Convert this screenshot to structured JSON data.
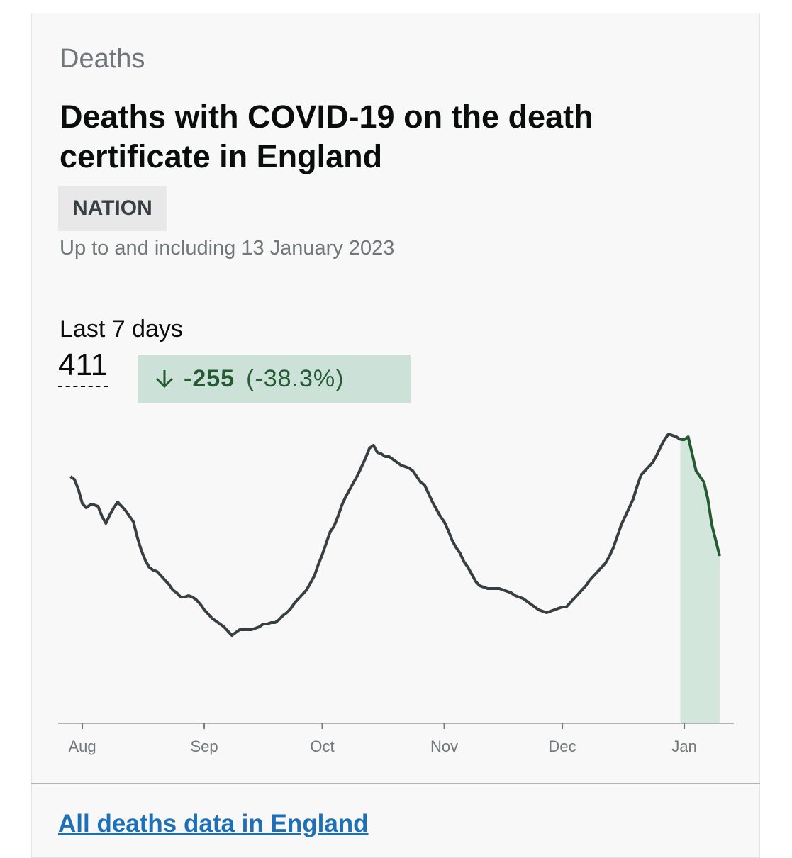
{
  "caption": "Deaths",
  "title": "Deaths with COVID-19 on the death certificate in England",
  "tag": "NATION",
  "date_note": "Up to and including 13 January 2023",
  "summary": {
    "label": "Last 7 days",
    "value": 411,
    "change": -255,
    "change_percent": "(-38.3%)"
  },
  "link": "All deaths data in England",
  "chart_data": {
    "type": "line",
    "categories": [
      null,
      null,
      null,
      "Aug",
      null,
      null,
      null,
      null,
      null,
      null,
      null,
      null,
      null,
      null,
      null,
      null,
      null,
      null,
      null,
      null,
      null,
      null,
      null,
      null,
      null,
      null,
      null,
      null,
      null,
      null,
      null,
      null,
      null,
      null,
      "Sep",
      null,
      null,
      null,
      null,
      null,
      null,
      null,
      null,
      null,
      null,
      null,
      null,
      null,
      null,
      null,
      null,
      null,
      null,
      null,
      null,
      null,
      null,
      null,
      null,
      null,
      null,
      null,
      null,
      null,
      "Oct",
      null,
      null,
      null,
      null,
      null,
      null,
      null,
      null,
      null,
      null,
      null,
      null,
      null,
      null,
      null,
      null,
      null,
      null,
      null,
      null,
      null,
      null,
      null,
      null,
      null,
      null,
      null,
      null,
      null,
      null,
      "Nov",
      null,
      null,
      null,
      null,
      null,
      null,
      null,
      null,
      null,
      null,
      null,
      null,
      null,
      null,
      null,
      null,
      null,
      null,
      null,
      null,
      null,
      null,
      null,
      null,
      null,
      null,
      null,
      null,
      null,
      "Dec",
      null,
      null,
      null,
      null,
      null,
      null,
      null,
      null,
      null,
      null,
      null,
      null,
      null,
      null,
      null,
      null,
      null,
      null,
      null,
      null,
      null,
      null,
      null,
      null,
      null,
      null,
      null,
      null,
      null,
      null,
      "Jan",
      null,
      null,
      null,
      null,
      null,
      null,
      null,
      null,
      null
    ],
    "series": [
      {
        "color": "#383f43",
        "values": [
          87,
          86,
          82.5,
          77.5,
          76,
          77,
          77,
          76.5,
          73,
          70.5,
          73.5,
          76,
          78,
          76.5,
          75,
          73,
          71,
          65.5,
          61,
          57.5,
          55,
          54,
          53.5,
          52,
          50.5,
          49,
          47,
          46,
          44.5,
          44.5,
          45,
          44.5,
          43.5,
          42,
          40,
          38.5,
          37,
          36,
          35,
          34,
          32.5,
          31,
          32,
          33,
          33,
          33,
          33,
          33.5,
          34,
          35,
          35,
          35.5,
          35.5,
          36.5,
          38,
          39,
          40.5,
          42.5,
          44,
          45.5,
          47,
          49.5,
          52,
          56,
          59.5,
          63.5,
          67.5,
          69.5,
          73,
          77,
          80,
          82.5,
          85,
          87.5,
          90.5,
          93.5,
          97,
          98,
          95.5,
          95,
          94,
          94,
          93,
          92,
          91,
          90.5,
          90,
          89,
          87,
          85,
          84,
          81,
          78,
          75.5,
          73,
          71,
          68,
          64.5,
          62,
          60,
          57,
          55,
          52.5,
          50,
          48.5,
          48,
          47.5,
          47.5,
          47.5,
          47.5,
          47,
          46.5,
          46,
          45,
          44.5,
          44,
          43,
          42,
          41,
          40,
          39.5,
          39,
          39.5,
          40,
          40.5,
          41,
          41,
          42.5,
          44,
          45.5,
          47,
          48.5,
          50.5,
          52,
          53.5,
          55,
          56.5,
          59,
          62,
          66,
          70,
          73,
          76,
          79,
          83.5,
          87.5,
          89,
          90.5,
          92,
          94.5,
          97.5,
          100,
          102,
          101.5,
          101,
          100,
          null,
          null,
          null,
          null,
          null,
          null,
          null,
          null,
          null,
          null
        ]
      },
      {
        "color": "#255a33",
        "fill": "#d2e6db",
        "values": [
          null,
          null,
          null,
          null,
          null,
          null,
          null,
          null,
          null,
          null,
          null,
          null,
          null,
          null,
          null,
          null,
          null,
          null,
          null,
          null,
          null,
          null,
          null,
          null,
          null,
          null,
          null,
          null,
          null,
          null,
          null,
          null,
          null,
          null,
          null,
          null,
          null,
          null,
          null,
          null,
          null,
          null,
          null,
          null,
          null,
          null,
          null,
          null,
          null,
          null,
          null,
          null,
          null,
          null,
          null,
          null,
          null,
          null,
          null,
          null,
          null,
          null,
          null,
          null,
          null,
          null,
          null,
          null,
          null,
          null,
          null,
          null,
          null,
          null,
          null,
          null,
          null,
          null,
          null,
          null,
          null,
          null,
          null,
          null,
          null,
          null,
          null,
          null,
          null,
          null,
          null,
          null,
          null,
          null,
          null,
          null,
          null,
          null,
          null,
          null,
          null,
          null,
          null,
          null,
          null,
          null,
          null,
          null,
          null,
          null,
          null,
          null,
          null,
          null,
          null,
          null,
          null,
          null,
          null,
          null,
          null,
          null,
          null,
          null,
          null,
          null,
          null,
          null,
          null,
          null,
          null,
          null,
          null,
          null,
          null,
          null,
          null,
          null,
          null,
          null,
          null,
          null,
          null,
          null,
          null,
          null,
          null,
          null,
          null,
          null,
          null,
          null,
          null,
          null,
          null,
          100,
          100,
          101,
          95,
          89,
          87,
          85,
          79,
          70,
          64.5,
          59
        ]
      }
    ],
    "ylim": [
      0,
      110
    ]
  }
}
